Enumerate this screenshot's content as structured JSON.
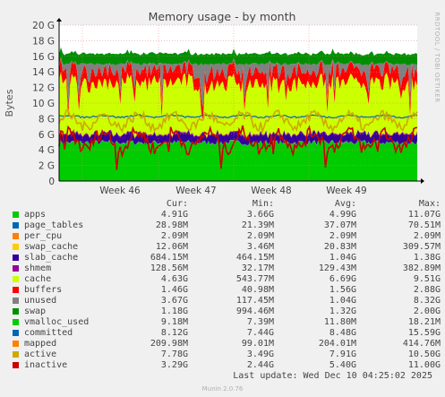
{
  "chart_data": {
    "type": "area",
    "title": "Memory usage - by month",
    "ylabel": "Bytes",
    "side_label": "RRDTOOL / TOBI OETIKER",
    "ylim": [
      0,
      20
    ],
    "y_unit": "G",
    "y_ticks": [
      0,
      2,
      4,
      6,
      8,
      10,
      12,
      14,
      16,
      18,
      20
    ],
    "y_tick_labels": [
      "0",
      "2 G",
      "4 G",
      "6 G",
      "8 G",
      "10 G",
      "12 G",
      "14 G",
      "16 G",
      "18 G",
      "20 G"
    ],
    "x_ticks": [
      "Week 46",
      "Week 47",
      "Week 48",
      "Week 49"
    ],
    "grid": true,
    "series": [
      {
        "name": "apps",
        "color": "#00cc00",
        "approx_level_G": 4.9
      },
      {
        "name": "page_tables",
        "color": "#0066b3",
        "approx_level_G": 0.04
      },
      {
        "name": "per_cpu",
        "color": "#ff8000",
        "approx_level_G": 0.002
      },
      {
        "name": "swap_cache",
        "color": "#ffcc00",
        "approx_level_G": 0.02
      },
      {
        "name": "slab_cache",
        "color": "#330099",
        "approx_level_G": 1.0
      },
      {
        "name": "shmem",
        "color": "#990099",
        "approx_level_G": 0.13
      },
      {
        "name": "cache",
        "color": "#ccff00",
        "approx_level_G": 6.7
      },
      {
        "name": "buffers",
        "color": "#ff0000",
        "approx_level_G": 1.6
      },
      {
        "name": "unused",
        "color": "#808080",
        "approx_level_G": 1.0
      },
      {
        "name": "swap",
        "color": "#008f00",
        "approx_level_G": 1.3
      }
    ]
  },
  "legend": {
    "headers": {
      "cur": "Cur:",
      "min": "Min:",
      "avg": "Avg:",
      "max": "Max:"
    },
    "rows": [
      {
        "name": "apps",
        "color": "#00cc00",
        "cur": "4.91G",
        "min": "3.66G",
        "avg": "4.99G",
        "max": "11.07G"
      },
      {
        "name": "page_tables",
        "color": "#0066b3",
        "cur": "28.98M",
        "min": "21.39M",
        "avg": "37.07M",
        "max": "70.51M"
      },
      {
        "name": "per_cpu",
        "color": "#ff8000",
        "cur": "2.09M",
        "min": "2.09M",
        "avg": "2.09M",
        "max": "2.09M"
      },
      {
        "name": "swap_cache",
        "color": "#ffcc00",
        "cur": "12.06M",
        "min": "3.46M",
        "avg": "20.83M",
        "max": "309.57M"
      },
      {
        "name": "slab_cache",
        "color": "#330099",
        "cur": "684.15M",
        "min": "464.15M",
        "avg": "1.04G",
        "max": "1.38G"
      },
      {
        "name": "shmem",
        "color": "#990099",
        "cur": "128.56M",
        "min": "32.17M",
        "avg": "129.43M",
        "max": "382.89M"
      },
      {
        "name": "cache",
        "color": "#ccff00",
        "cur": "4.63G",
        "min": "543.77M",
        "avg": "6.69G",
        "max": "9.51G"
      },
      {
        "name": "buffers",
        "color": "#ff0000",
        "cur": "1.46G",
        "min": "40.98M",
        "avg": "1.56G",
        "max": "2.88G"
      },
      {
        "name": "unused",
        "color": "#808080",
        "cur": "3.67G",
        "min": "117.45M",
        "avg": "1.04G",
        "max": "8.32G"
      },
      {
        "name": "swap",
        "color": "#008f00",
        "cur": "1.18G",
        "min": "994.46M",
        "avg": "1.32G",
        "max": "2.00G"
      },
      {
        "name": "vmalloc_used",
        "color": "#00cc00",
        "cur": "9.18M",
        "min": "7.39M",
        "avg": "11.80M",
        "max": "18.21M"
      },
      {
        "name": "committed",
        "color": "#0066b3",
        "cur": "8.12G",
        "min": "7.44G",
        "avg": "8.48G",
        "max": "15.59G"
      },
      {
        "name": "mapped",
        "color": "#ff8000",
        "cur": "209.98M",
        "min": "99.01M",
        "avg": "204.01M",
        "max": "414.76M"
      },
      {
        "name": "active",
        "color": "#ccaa00",
        "cur": "7.78G",
        "min": "3.49G",
        "avg": "7.91G",
        "max": "10.50G"
      },
      {
        "name": "inactive",
        "color": "#cc0000",
        "cur": "3.29G",
        "min": "2.44G",
        "avg": "5.40G",
        "max": "11.00G"
      }
    ]
  },
  "footer": {
    "last_update": "Last update: Wed Dec 10 04:25:02 2025",
    "munin": "Munin 2.0.76"
  }
}
